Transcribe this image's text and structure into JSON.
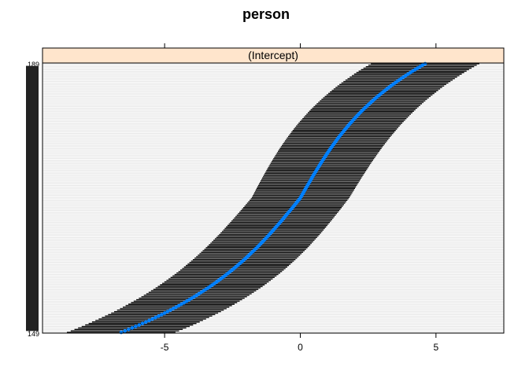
{
  "chart_data": {
    "type": "dotplot",
    "title": "person",
    "panel_label": "(Intercept)",
    "xlabel": "",
    "ylabel": "",
    "xlim": [
      -9.5,
      7.5
    ],
    "x_ticks": [
      -5,
      0,
      5
    ],
    "x_tick_labels": [
      "-5",
      "0",
      "5"
    ],
    "grid": true,
    "series": [
      {
        "kind": "random-effect-estimates-with-intervals",
        "n_levels": 182,
        "y_tick_labels_visible": [
          "189",
          "149"
        ],
        "estimate_at_bottom": -6.6,
        "estimate_at_top": 4.6,
        "lower_at_bottom": -8.5,
        "upper_at_top": 6.5,
        "interval_halfwidth_center": 1.8,
        "interval_halfwidth_extreme": 2.0
      }
    ]
  },
  "colors": {
    "dot": "#0080ff",
    "interval": "#000000",
    "strip_fill": "#ffe5cc",
    "grid": "#e6e6e6",
    "axis": "#000000"
  }
}
